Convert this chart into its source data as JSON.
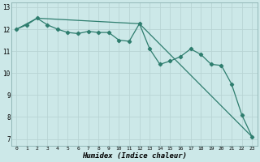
{
  "xlabel": "Humidex (Indice chaleur)",
  "background_color": "#cce8e8",
  "grid_color": "#b8d4d4",
  "line_color": "#2e7d6e",
  "xlim": [
    -0.5,
    23.5
  ],
  "ylim": [
    6.7,
    13.2
  ],
  "yticks": [
    7,
    8,
    9,
    10,
    11,
    12,
    13
  ],
  "xticks": [
    0,
    1,
    2,
    3,
    4,
    5,
    6,
    7,
    8,
    9,
    10,
    11,
    12,
    13,
    14,
    15,
    16,
    17,
    18,
    19,
    20,
    21,
    22,
    23
  ],
  "line1_x": [
    0,
    1,
    2,
    3,
    4,
    5,
    6,
    7,
    8,
    9,
    10,
    11,
    12,
    13,
    14,
    15,
    16,
    17,
    18,
    19,
    20,
    21,
    22,
    23
  ],
  "line1_y": [
    12.0,
    12.2,
    12.5,
    12.2,
    12.0,
    11.85,
    11.8,
    11.9,
    11.85,
    11.85,
    11.5,
    11.45,
    12.25,
    11.1,
    10.4,
    10.55,
    10.75,
    11.1,
    10.85,
    10.4,
    10.35,
    9.5,
    8.1,
    7.1
  ],
  "line2_x": [
    0,
    2,
    12,
    23
  ],
  "line2_y": [
    12.0,
    12.5,
    12.25,
    7.1
  ]
}
